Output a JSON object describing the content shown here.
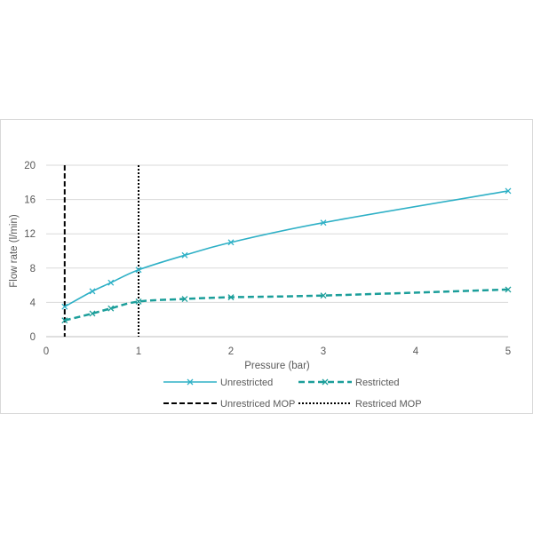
{
  "chart_data": {
    "type": "line",
    "xlabel": "Pressure (bar)",
    "ylabel": "Flow rate (l/min)",
    "xlim": [
      0,
      5
    ],
    "ylim": [
      0,
      20
    ],
    "xticks": [
      "0",
      "1",
      "2",
      "3",
      "4",
      "5"
    ],
    "yticks": [
      "0",
      "4",
      "8",
      "12",
      "16",
      "20"
    ],
    "grid": "horizontal",
    "legend_position": "bottom",
    "series": [
      {
        "name": "Unrestricted",
        "style": "solid",
        "marker": "x",
        "color": "#2eb0c6",
        "x": [
          0.2,
          0.5,
          0.7,
          1.0,
          1.5,
          2.0,
          3.0,
          5.0
        ],
        "y": [
          3.5,
          5.3,
          6.3,
          7.8,
          9.5,
          11.0,
          13.3,
          17.0
        ]
      },
      {
        "name": "Restricted",
        "style": "dashed",
        "marker": "x",
        "color": "#1b9e9a",
        "x": [
          0.2,
          0.5,
          0.7,
          1.0,
          1.5,
          2.0,
          3.0,
          5.0
        ],
        "y": [
          1.9,
          2.7,
          3.3,
          4.1,
          4.4,
          4.6,
          4.8,
          5.5
        ]
      }
    ],
    "reference_lines": [
      {
        "name": "Unrestriced MOP",
        "x": 0.2,
        "style": "dashed",
        "color": "#000000"
      },
      {
        "name": "Restriced MOP",
        "x": 1.0,
        "style": "dotted",
        "color": "#000000"
      }
    ]
  }
}
